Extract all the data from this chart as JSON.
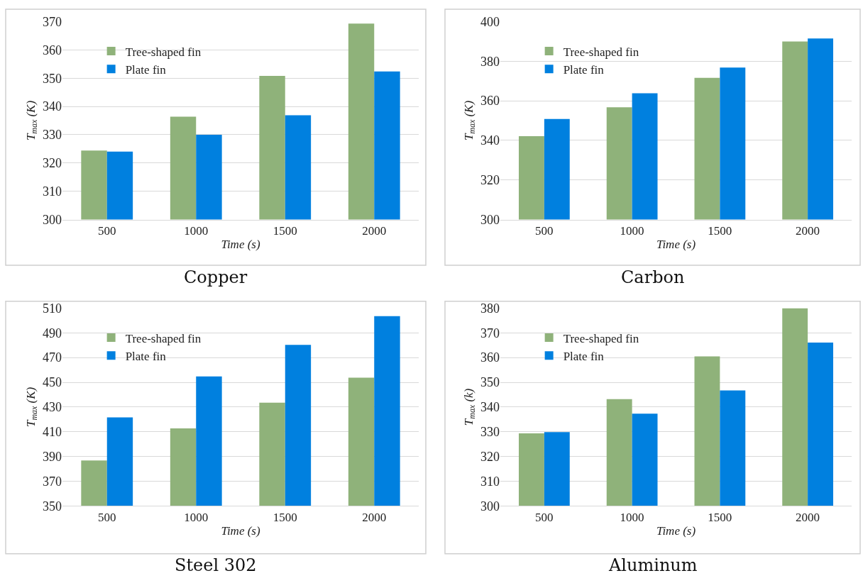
{
  "chart_data": [
    {
      "type": "bar",
      "title": "Copper",
      "xlabel": "Time (s)",
      "ylabel": "T$_{max}$ (K)",
      "categories": [
        "500",
        "1000",
        "1500",
        "2000"
      ],
      "series": [
        {
          "name": "Tree-shaped fin",
          "color": "#8fb27a",
          "values": [
            324.4,
            336.4,
            350.8,
            369.3
          ]
        },
        {
          "name": "Plate fin",
          "color": "#0080df",
          "values": [
            324.0,
            330.0,
            336.9,
            352.4
          ]
        }
      ],
      "ylim": [
        300,
        370
      ],
      "yticks": [
        300,
        310,
        320,
        330,
        340,
        350,
        360,
        370
      ],
      "grid": "y",
      "legend": "top left"
    },
    {
      "type": "bar",
      "title": "Carbon",
      "xlabel": "Time (s)",
      "ylabel": "T$_{max}$ (K)",
      "categories": [
        "500",
        "1000",
        "1500",
        "2000"
      ],
      "series": [
        {
          "name": "Tree-shaped fin",
          "color": "#8fb27a",
          "values": [
            342.1,
            356.7,
            371.6,
            390.0
          ]
        },
        {
          "name": "Plate fin",
          "color": "#0080df",
          "values": [
            350.8,
            363.8,
            376.8,
            391.5
          ]
        }
      ],
      "ylim": [
        300,
        400
      ],
      "yticks": [
        300,
        320,
        340,
        360,
        380,
        400
      ],
      "grid": "y",
      "legend": "top left"
    },
    {
      "type": "bar",
      "title": "Steel 302",
      "xlabel": "Time (s)",
      "ylabel": "T$_{max}$ (K)",
      "categories": [
        "500",
        "1000",
        "1500",
        "2000"
      ],
      "series": [
        {
          "name": "Tree-shaped fin",
          "color": "#8fb27a",
          "values": [
            386.8,
            412.7,
            433.5,
            453.8
          ]
        },
        {
          "name": "Plate fin",
          "color": "#0080df",
          "values": [
            421.7,
            454.7,
            480.3,
            503.5
          ]
        }
      ],
      "ylim": [
        350,
        510
      ],
      "yticks": [
        350,
        370,
        390,
        410,
        430,
        450,
        470,
        490,
        510
      ],
      "grid": "y",
      "legend": "top left"
    },
    {
      "type": "bar",
      "title": "Aluminum",
      "xlabel": "Time (s)",
      "ylabel": "T$_{max}$ (k)",
      "categories": [
        "500",
        "1000",
        "1500",
        "2000"
      ],
      "series": [
        {
          "name": "Tree-shaped fin",
          "color": "#8fb27a",
          "values": [
            329.4,
            343.2,
            360.5,
            380.0
          ]
        },
        {
          "name": "Plate fin",
          "color": "#0080df",
          "values": [
            329.9,
            337.3,
            346.7,
            366.1
          ]
        }
      ],
      "ylim": [
        300,
        380
      ],
      "yticks": [
        300,
        310,
        320,
        330,
        340,
        350,
        360,
        370,
        380
      ],
      "grid": "y",
      "legend": "top left"
    }
  ]
}
